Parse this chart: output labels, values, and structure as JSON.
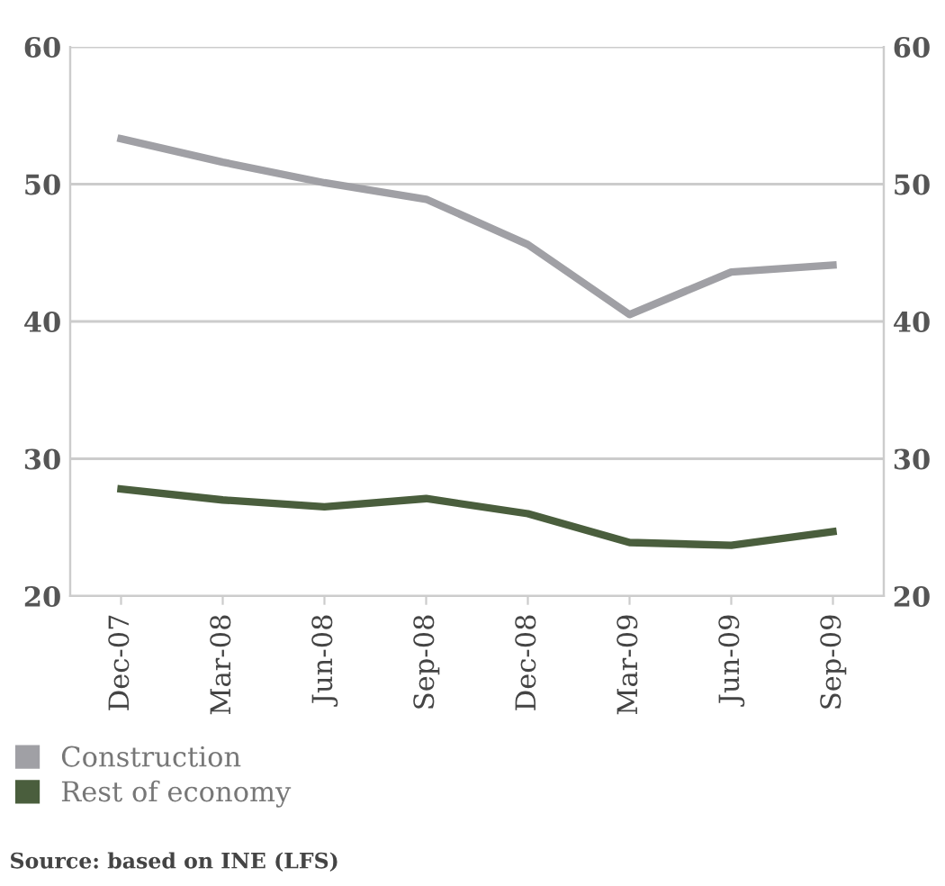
{
  "chart_data": {
    "type": "line",
    "categories": [
      "Dec-07",
      "Mar-08",
      "Jun-08",
      "Sep-08",
      "Dec-08",
      "Mar-09",
      "Jun-09",
      "Sep-09"
    ],
    "series": [
      {
        "name": "Construction",
        "color": "#a0a0a5",
        "values": [
          53.3,
          51.6,
          50.1,
          48.9,
          45.6,
          40.5,
          43.6,
          44.1
        ]
      },
      {
        "name": "Rest of economy",
        "color": "#4a5e3d",
        "values": [
          27.8,
          27.0,
          26.5,
          27.1,
          26.0,
          23.9,
          23.7,
          24.7
        ]
      }
    ],
    "ylim": [
      20,
      60
    ],
    "yticks": [
      20,
      30,
      40,
      50,
      60
    ],
    "y2lim": [
      20,
      60
    ],
    "y2ticks": [
      20,
      30,
      40,
      50,
      60
    ],
    "grid": "y",
    "legend": "bottom left",
    "marker": "none",
    "line_style": "solid",
    "annotations": [
      "Source: based on INE (LFS)"
    ]
  }
}
